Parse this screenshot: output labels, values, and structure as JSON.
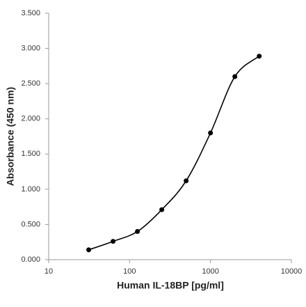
{
  "chart_data": {
    "type": "line",
    "xlabel": "Human IL-18BP [pg/ml]",
    "ylabel": "Absorbance (450 nm)",
    "x": [
      31.25,
      62.5,
      125,
      250,
      500,
      1000,
      2000,
      4000
    ],
    "series": [
      {
        "color": "#000000",
        "values": [
          0.14,
          0.26,
          0.4,
          0.71,
          1.12,
          1.8,
          2.6,
          2.89
        ]
      }
    ],
    "xlog": true,
    "xlim": [
      10,
      10000
    ],
    "xticks": [
      10,
      100,
      1000,
      10000
    ],
    "ylim": [
      0,
      3.5
    ],
    "yticks": [
      {
        "value": 0,
        "label": "0.000"
      },
      {
        "value": 0.5,
        "label": "0.500"
      },
      {
        "value": 1,
        "label": "1.000"
      },
      {
        "value": 1.5,
        "label": "1.500"
      },
      {
        "value": 2,
        "label": "2.000"
      },
      {
        "value": 2.5,
        "label": "2.500"
      },
      {
        "value": 3,
        "label": "3.000"
      },
      {
        "value": 3.5,
        "label": "3.500"
      }
    ],
    "grid": false
  }
}
